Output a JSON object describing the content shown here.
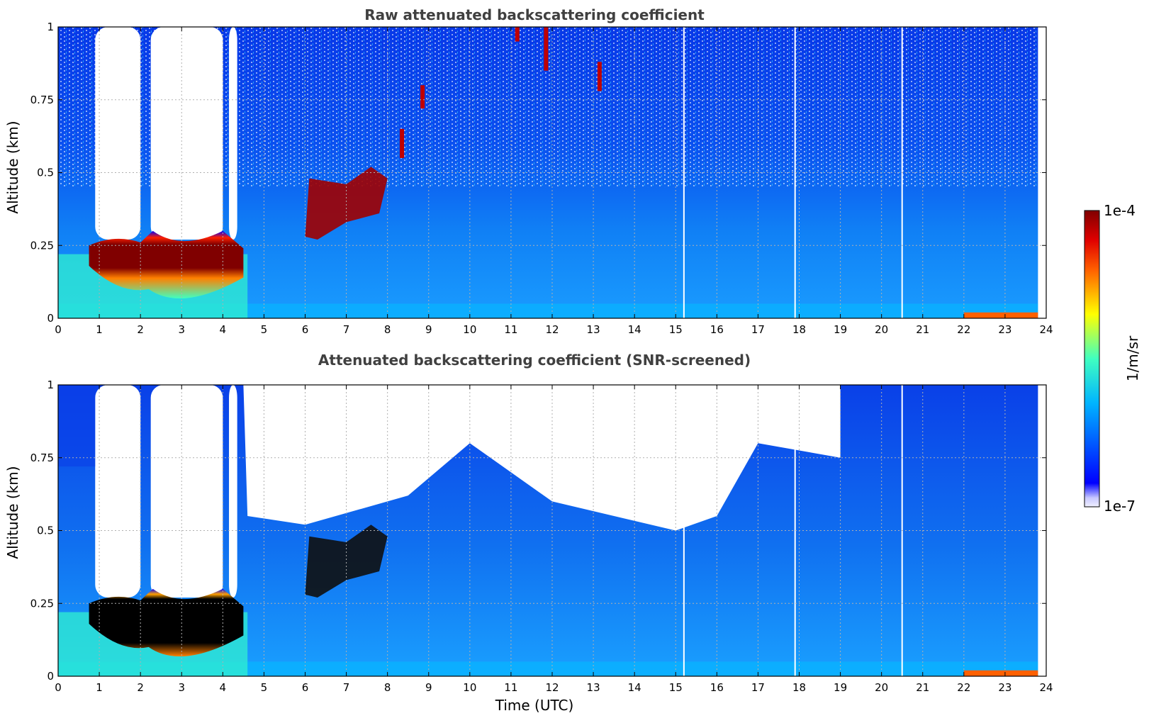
{
  "chart_data": [
    {
      "type": "heatmap",
      "title": "Raw attenuated backscattering coefficient",
      "xlabel": "",
      "ylabel": "Altitude (km)",
      "xlim": [
        0,
        24
      ],
      "ylim": [
        0,
        1
      ],
      "x_ticks": [
        "0",
        "1",
        "2",
        "3",
        "4",
        "5",
        "6",
        "7",
        "8",
        "9",
        "10",
        "11",
        "12",
        "13",
        "14",
        "15",
        "16",
        "17",
        "18",
        "19",
        "20",
        "21",
        "22",
        "23",
        "24"
      ],
      "y_ticks": [
        "0",
        "0.25",
        "0.5",
        "0.75",
        "1"
      ],
      "grid": true,
      "data_end_time": 23.8,
      "features": [
        {
          "desc": "low cloud base layer (saturated)",
          "x": [
            0.8,
            4.5
          ],
          "y": [
            0.05,
            0.27
          ]
        },
        {
          "desc": "rising cloud layer",
          "x": [
            6.0,
            8.0
          ],
          "y": [
            0.27,
            0.5
          ]
        },
        {
          "desc": "elevated cloud patches",
          "x": [
            8.0,
            13.3
          ],
          "y": [
            0.55,
            1.0
          ]
        },
        {
          "desc": "near-surface layer",
          "x": [
            22.0,
            23.8
          ],
          "y": [
            0.0,
            0.02
          ]
        }
      ]
    },
    {
      "type": "heatmap",
      "title": "Attenuated backscattering coefficient (SNR-screened)",
      "xlabel": "Time (UTC)",
      "ylabel": "Altitude (km)",
      "xlim": [
        0,
        24
      ],
      "ylim": [
        0,
        1
      ],
      "x_ticks": [
        "0",
        "1",
        "2",
        "3",
        "4",
        "5",
        "6",
        "7",
        "8",
        "9",
        "10",
        "11",
        "12",
        "13",
        "14",
        "15",
        "16",
        "17",
        "18",
        "19",
        "20",
        "21",
        "22",
        "23",
        "24"
      ],
      "y_ticks": [
        "0",
        "0.25",
        "0.5",
        "0.75",
        "1"
      ],
      "grid": true,
      "data_end_time": 23.8,
      "features": [
        {
          "desc": "low cloud base layer (saturated)",
          "x": [
            0.8,
            4.5
          ],
          "y": [
            0.05,
            0.27
          ]
        },
        {
          "desc": "rising cloud layer",
          "x": [
            6.0,
            8.0
          ],
          "y": [
            0.27,
            0.5
          ]
        },
        {
          "desc": "screened (no signal) region",
          "x": [
            4.5,
            19.0
          ],
          "y": [
            0.5,
            1.0
          ]
        },
        {
          "desc": "near-surface layer",
          "x": [
            22.0,
            23.8
          ],
          "y": [
            0.0,
            0.02
          ]
        }
      ]
    }
  ],
  "colorbar": {
    "label": "1/m/sr",
    "max_label": "1e-4",
    "min_label": "1e-7",
    "scale": "log",
    "range": [
      1e-07,
      0.0001
    ],
    "colormap": "jet"
  }
}
